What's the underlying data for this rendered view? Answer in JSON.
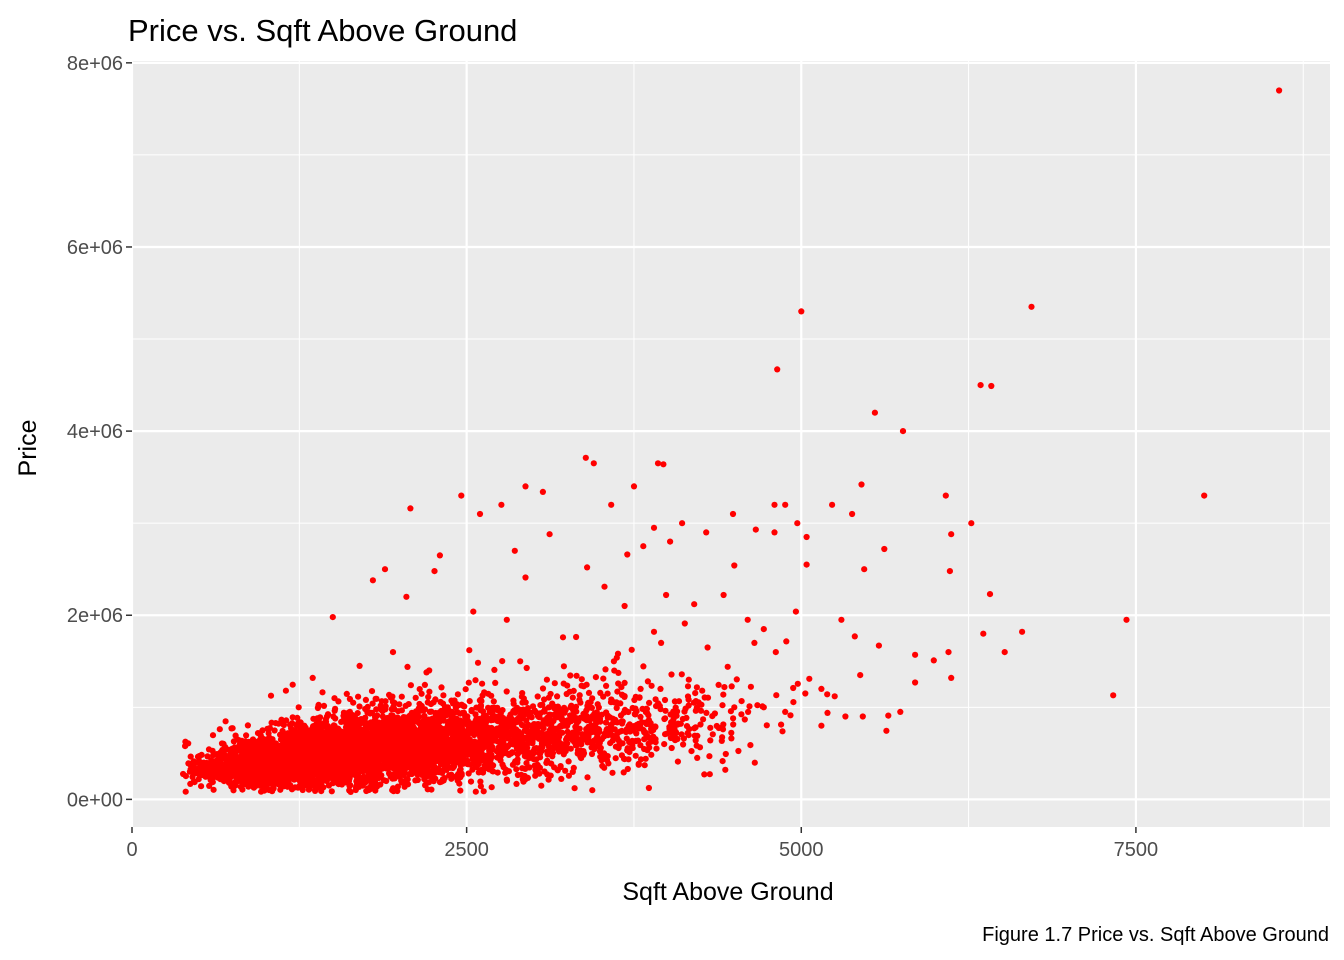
{
  "chart_data": {
    "type": "scatter",
    "title": "Price vs. Sqft Above Ground",
    "xlabel": "Sqft Above Ground",
    "ylabel": "Price",
    "caption": "Figure 1.7 Price vs. Sqft Above Ground",
    "xlim": [
      0,
      8950
    ],
    "ylim": [
      -300000,
      8020000
    ],
    "x_ticks": [
      0,
      2500,
      5000,
      7500
    ],
    "x_tick_labels": [
      "0",
      "2500",
      "5000",
      "7500"
    ],
    "y_ticks": [
      0,
      2000000,
      4000000,
      6000000,
      8000000
    ],
    "y_tick_labels": [
      "0e+00",
      "2e+06",
      "4e+06",
      "6e+06",
      "8e+06"
    ],
    "grid": true,
    "point_color": "#ff0000",
    "panel_color": "#ebebeb",
    "points": [
      [
        8570,
        7700000
      ],
      [
        6720,
        5350000
      ],
      [
        5000,
        5300000
      ],
      [
        4820,
        4670000
      ],
      [
        6340,
        4500000
      ],
      [
        6420,
        4490000
      ],
      [
        5550,
        4200000
      ],
      [
        5760,
        4000000
      ],
      [
        3390,
        3710000
      ],
      [
        3450,
        3650000
      ],
      [
        3930,
        3650000
      ],
      [
        3970,
        3640000
      ],
      [
        5450,
        3420000
      ],
      [
        3750,
        3400000
      ],
      [
        2940,
        3400000
      ],
      [
        3070,
        3340000
      ],
      [
        2460,
        3300000
      ],
      [
        6080,
        3300000
      ],
      [
        8010,
        3300000
      ],
      [
        2080,
        3160000
      ],
      [
        2760,
        3200000
      ],
      [
        3580,
        3200000
      ],
      [
        4800,
        3200000
      ],
      [
        4880,
        3200000
      ],
      [
        5230,
        3200000
      ],
      [
        5380,
        3100000
      ],
      [
        4490,
        3100000
      ],
      [
        2600,
        3100000
      ],
      [
        6270,
        3000000
      ],
      [
        4970,
        3000000
      ],
      [
        4110,
        3000000
      ],
      [
        3900,
        2950000
      ],
      [
        4290,
        2900000
      ],
      [
        4800,
        2900000
      ],
      [
        6120,
        2880000
      ],
      [
        5040,
        2850000
      ],
      [
        5620,
        2720000
      ],
      [
        6110,
        2480000
      ],
      [
        5470,
        2500000
      ],
      [
        4500,
        2540000
      ],
      [
        5040,
        2550000
      ],
      [
        1890,
        2500000
      ],
      [
        2260,
        2480000
      ],
      [
        6410,
        2230000
      ],
      [
        5300,
        1950000
      ],
      [
        7430,
        1950000
      ],
      [
        6360,
        1800000
      ],
      [
        6650,
        1820000
      ],
      [
        5580,
        1670000
      ],
      [
        5850,
        1570000
      ],
      [
        6100,
        1600000
      ],
      [
        6520,
        1600000
      ],
      [
        5990,
        1510000
      ],
      [
        6120,
        1320000
      ],
      [
        5850,
        1270000
      ],
      [
        7330,
        1130000
      ],
      [
        5440,
        1350000
      ],
      [
        5060,
        1310000
      ],
      [
        5150,
        1200000
      ],
      [
        5030,
        1150000
      ],
      [
        4710,
        1010000
      ],
      [
        5250,
        1120000
      ],
      [
        5740,
        950000
      ],
      [
        5460,
        900000
      ],
      [
        5650,
        910000
      ],
      [
        5330,
        900000
      ],
      [
        4620,
        590000
      ],
      [
        4860,
        740000
      ],
      [
        4880,
        950000
      ],
      [
        5150,
        800000
      ],
      [
        4720,
        1000000
      ],
      [
        4940,
        1210000
      ],
      [
        1500,
        1980000
      ],
      [
        1800,
        2380000
      ],
      [
        4020,
        2800000
      ],
      [
        4660,
        2930000
      ],
      [
        3120,
        2880000
      ],
      [
        3700,
        2660000
      ],
      [
        3820,
        2750000
      ],
      [
        2860,
        2700000
      ],
      [
        2300,
        2650000
      ],
      [
        3400,
        2520000
      ],
      [
        2940,
        2410000
      ],
      [
        3530,
        2310000
      ],
      [
        3990,
        2220000
      ],
      [
        4200,
        2120000
      ],
      [
        4420,
        2220000
      ],
      [
        4130,
        1910000
      ],
      [
        4720,
        1850000
      ],
      [
        4960,
        2040000
      ],
      [
        4600,
        1950000
      ],
      [
        3680,
        2100000
      ],
      [
        3900,
        1820000
      ],
      [
        3220,
        1760000
      ],
      [
        2800,
        1950000
      ],
      [
        2550,
        2040000
      ],
      [
        2050,
        2200000
      ],
      [
        3600,
        1500000
      ],
      [
        4300,
        1650000
      ],
      [
        4650,
        1700000
      ],
      [
        4810,
        1600000
      ],
      [
        5400,
        1770000
      ],
      [
        4450,
        1440000
      ],
      [
        4160,
        1300000
      ],
      [
        3800,
        1200000
      ],
      [
        3350,
        1050000
      ],
      [
        4260,
        1180000
      ],
      [
        4500,
        1000000
      ],
      [
        1950,
        1600000
      ],
      [
        1700,
        1450000
      ],
      [
        1350,
        1320000
      ],
      [
        1150,
        1180000
      ],
      [
        2520,
        1620000
      ],
      [
        2900,
        1500000
      ],
      [
        3100,
        1300000
      ],
      [
        2220,
        1400000
      ]
    ],
    "dense_clusters": [
      {
        "x_mean": 900,
        "x_sd": 220,
        "y_mean": 330000,
        "y_sd": 120000,
        "count": 700
      },
      {
        "x_mean": 1300,
        "x_sd": 300,
        "y_mean": 430000,
        "y_sd": 170000,
        "count": 1200
      },
      {
        "x_mean": 1800,
        "x_sd": 380,
        "y_mean": 560000,
        "y_sd": 230000,
        "count": 1400
      },
      {
        "x_mean": 2400,
        "x_sd": 480,
        "y_mean": 650000,
        "y_sd": 260000,
        "count": 1000
      },
      {
        "x_mean": 3100,
        "x_sd": 520,
        "y_mean": 750000,
        "y_sd": 280000,
        "count": 550
      },
      {
        "x_mean": 3800,
        "x_sd": 480,
        "y_mean": 900000,
        "y_sd": 320000,
        "count": 220
      }
    ]
  }
}
